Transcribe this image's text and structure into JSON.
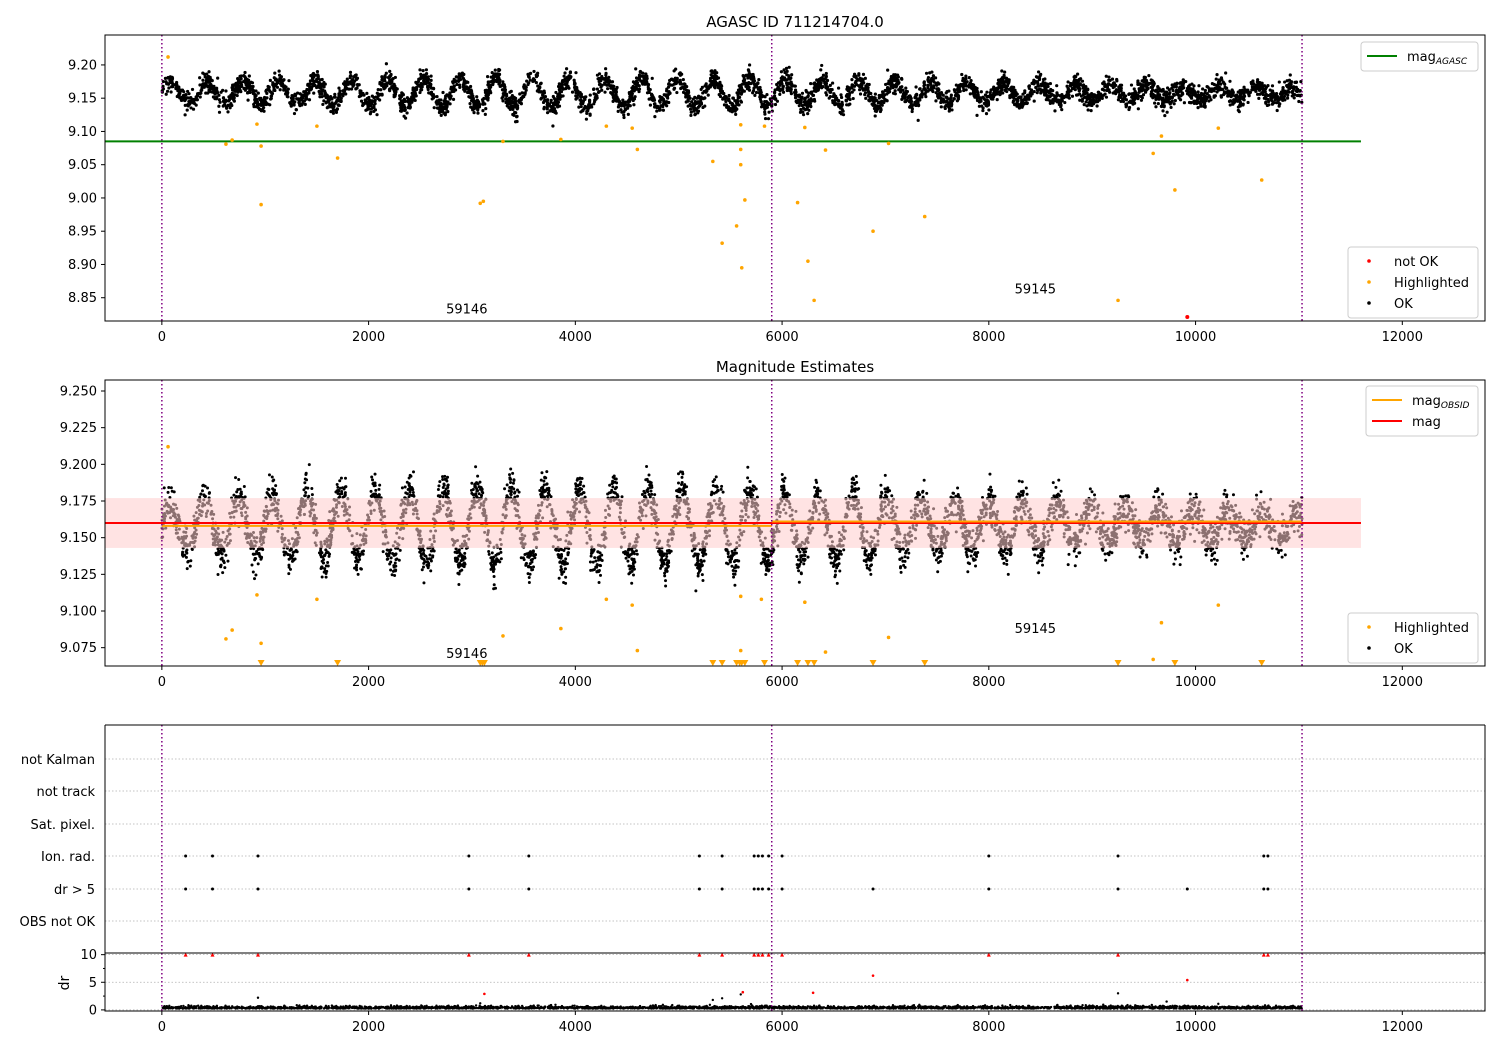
{
  "figure": {
    "colors": {
      "ok": "#000000",
      "highlighted": "#ffa500",
      "not_ok": "#ff0000",
      "agasc_line": "#008000",
      "obsid_line": "#ffa500",
      "mag_line": "#ff0000",
      "mag_band": "#ffcccc",
      "obsid_boundary": "#800080",
      "grid": "#b0b0b0"
    }
  },
  "chart_data": [
    {
      "type": "scatter",
      "title": "AGASC ID 711214704.0",
      "xlabel": "",
      "ylabel": "",
      "xlim": [
        -550,
        12800
      ],
      "ylim": [
        8.815,
        9.245
      ],
      "x_ticks": [
        0,
        2000,
        4000,
        6000,
        8000,
        10000,
        12000
      ],
      "y_ticks": [
        8.85,
        8.9,
        8.95,
        9.0,
        9.05,
        9.1,
        9.15,
        9.2
      ],
      "y_tick_decimals": 2,
      "obsid_boundaries": [
        0,
        5900,
        11030
      ],
      "obsid_labels": [
        {
          "text": "59146",
          "x": 2950,
          "y": 8.826
        },
        {
          "text": "59145",
          "x": 8450,
          "y": 8.856
        }
      ],
      "agasc_mag": {
        "value": 9.085,
        "x_range": [
          -550,
          11600
        ]
      },
      "ok_band": {
        "x_range": [
          0,
          11030
        ],
        "center": 9.158,
        "amplitude": 0.018,
        "period": 350,
        "scatter": 0.014,
        "n_points": 4200
      },
      "legend_position": "top-right / bottom-right",
      "legend_top": [
        {
          "label": "mag",
          "sub": "AGASC",
          "kind": "line",
          "color": "#008000"
        }
      ],
      "legend_bottom": [
        {
          "label": "not OK",
          "kind": "dot",
          "color": "#ff0000"
        },
        {
          "label": "Highlighted",
          "kind": "dot",
          "color": "#ffa500"
        },
        {
          "label": "OK",
          "kind": "dot",
          "color": "#000000"
        }
      ],
      "series": [
        {
          "name": "Highlighted",
          "points": [
            [
              60,
              9.212
            ],
            [
              620,
              9.081
            ],
            [
              680,
              9.087
            ],
            [
              920,
              9.111
            ],
            [
              960,
              9.078
            ],
            [
              960,
              8.99
            ],
            [
              1500,
              9.108
            ],
            [
              1700,
              9.06
            ],
            [
              3080,
              8.992
            ],
            [
              3110,
              8.995
            ],
            [
              3300,
              9.085
            ],
            [
              3860,
              9.088
            ],
            [
              4300,
              9.108
            ],
            [
              4550,
              9.105
            ],
            [
              4600,
              9.073
            ],
            [
              5330,
              9.055
            ],
            [
              5420,
              8.932
            ],
            [
              5560,
              8.958
            ],
            [
              5600,
              9.11
            ],
            [
              5600,
              9.073
            ],
            [
              5600,
              9.05
            ],
            [
              5610,
              8.895
            ],
            [
              5640,
              8.997
            ],
            [
              5830,
              9.108
            ],
            [
              6150,
              8.993
            ],
            [
              6220,
              9.106
            ],
            [
              6250,
              8.905
            ],
            [
              6310,
              8.846
            ],
            [
              6420,
              9.072
            ],
            [
              6880,
              8.95
            ],
            [
              7030,
              9.082
            ],
            [
              7380,
              8.972
            ],
            [
              9250,
              8.846
            ],
            [
              9590,
              9.067
            ],
            [
              9670,
              9.093
            ],
            [
              9800,
              9.012
            ],
            [
              10220,
              9.105
            ],
            [
              10640,
              9.027
            ]
          ]
        },
        {
          "name": "not OK",
          "points": [
            [
              9920,
              8.821
            ]
          ]
        }
      ]
    },
    {
      "type": "scatter",
      "title": "Magnitude Estimates",
      "xlabel": "",
      "ylabel": "",
      "xlim": [
        -550,
        12800
      ],
      "ylim": [
        9.0625,
        9.2575
      ],
      "x_ticks": [
        0,
        2000,
        4000,
        6000,
        8000,
        10000,
        12000
      ],
      "y_ticks": [
        9.075,
        9.1,
        9.125,
        9.15,
        9.175,
        9.2,
        9.225,
        9.25
      ],
      "y_tick_decimals": 3,
      "obsid_boundaries": [
        0,
        5900,
        11030
      ],
      "obsid_labels": [
        {
          "text": "59146",
          "x": 2950,
          "y": 9.068
        },
        {
          "text": "59145",
          "x": 8450,
          "y": 9.085
        }
      ],
      "mag": {
        "value": 9.16,
        "x_range": [
          -550,
          11600
        ],
        "band": [
          9.143,
          9.177
        ]
      },
      "mag_obsid": [
        {
          "value": 9.158,
          "x_range": [
            0,
            5900
          ]
        },
        {
          "value": 9.161,
          "x_range": [
            5900,
            11030
          ]
        }
      ],
      "ok_band": {
        "x_range": [
          0,
          11030
        ],
        "center": 9.158,
        "amplitude": 0.022,
        "period": 330,
        "scatter": 0.012,
        "n_points": 4600
      },
      "legend_position": "top-right / bottom-right",
      "legend_top": [
        {
          "label": "mag",
          "sub": "OBSID",
          "kind": "line",
          "color": "#ffa500"
        },
        {
          "label": "mag",
          "kind": "line",
          "color": "#ff0000"
        }
      ],
      "legend_bottom": [
        {
          "label": "Highlighted",
          "kind": "dot",
          "color": "#ffa500"
        },
        {
          "label": "OK",
          "kind": "dot",
          "color": "#000000"
        }
      ],
      "series": [
        {
          "name": "Highlighted",
          "points": [
            [
              60,
              9.212
            ],
            [
              620,
              9.081
            ],
            [
              680,
              9.087
            ],
            [
              920,
              9.111
            ],
            [
              960,
              9.078
            ],
            [
              1500,
              9.108
            ],
            [
              3300,
              9.083
            ],
            [
              3860,
              9.088
            ],
            [
              4300,
              9.108
            ],
            [
              4550,
              9.104
            ],
            [
              4600,
              9.073
            ],
            [
              5600,
              9.11
            ],
            [
              5600,
              9.073
            ],
            [
              5800,
              9.108
            ],
            [
              6220,
              9.106
            ],
            [
              6420,
              9.072
            ],
            [
              7030,
              9.082
            ],
            [
              9590,
              9.067
            ],
            [
              9670,
              9.092
            ],
            [
              10220,
              9.104
            ]
          ]
        },
        {
          "name": "Highlighted (below range)",
          "marker": "triangle-down",
          "x": [
            960,
            1700,
            3080,
            3100,
            3120,
            5330,
            5420,
            5560,
            5590,
            5610,
            5640,
            5830,
            6150,
            6250,
            6310,
            6880,
            7380,
            9250,
            9800,
            10640
          ]
        }
      ]
    },
    {
      "type": "scatter",
      "title": "",
      "xlabel": "",
      "ylabel": "",
      "xlim": [
        -550,
        12800
      ],
      "category_rows": [
        "not Kalman",
        "not track",
        "Sat. pixel.",
        "Ion. rad.",
        "dr > 5",
        "OBS not OK"
      ],
      "series": [
        {
          "name": "Ion. rad.",
          "x": [
            230,
            490,
            930,
            2970,
            3550,
            5200,
            5420,
            5730,
            5770,
            5810,
            5870,
            6000,
            8000,
            9250,
            10660,
            10700
          ]
        },
        {
          "name": "dr > 5",
          "x": [
            230,
            490,
            930,
            2970,
            3550,
            5200,
            5420,
            5730,
            5770,
            5810,
            5870,
            6000,
            6880,
            8000,
            9250,
            9920,
            10660,
            10700
          ]
        }
      ],
      "obsid_boundaries": [
        0,
        5900,
        11030
      ]
    },
    {
      "type": "scatter",
      "title": "",
      "xlabel": "",
      "ylabel": "dr",
      "xlim": [
        -550,
        12800
      ],
      "ylim": [
        -0.2,
        10.3
      ],
      "x_ticks": [
        0,
        2000,
        4000,
        6000,
        8000,
        10000,
        12000
      ],
      "y_ticks": [
        0,
        5,
        10
      ],
      "obsid_boundaries": [
        0,
        5900,
        11030
      ],
      "ok_band": {
        "x_range": [
          0,
          11030
        ],
        "center": 0.35,
        "spread": 0.35,
        "n_points": 3200
      },
      "series": [
        {
          "name": "clipped (dr > 10)",
          "marker": "triangle-up",
          "x": [
            230,
            490,
            930,
            2970,
            3550,
            5200,
            5420,
            5730,
            5770,
            5810,
            5870,
            6000,
            8000,
            9250,
            10660,
            10700
          ]
        },
        {
          "name": "dr > 5",
          "points": [
            [
              3120,
              2.9
            ],
            [
              5620,
              3.2
            ],
            [
              6300,
              3.1
            ],
            [
              6880,
              6.2
            ],
            [
              9920,
              5.4
            ]
          ]
        },
        {
          "name": "OK",
          "points": [
            [
              930,
              2.2
            ],
            [
              3080,
              1.2
            ],
            [
              5330,
              1.8
            ],
            [
              5420,
              2.1
            ],
            [
              5600,
              2.8
            ],
            [
              9250,
              3.0
            ],
            [
              9720,
              1.5
            ],
            [
              10220,
              1.1
            ]
          ]
        }
      ]
    }
  ]
}
